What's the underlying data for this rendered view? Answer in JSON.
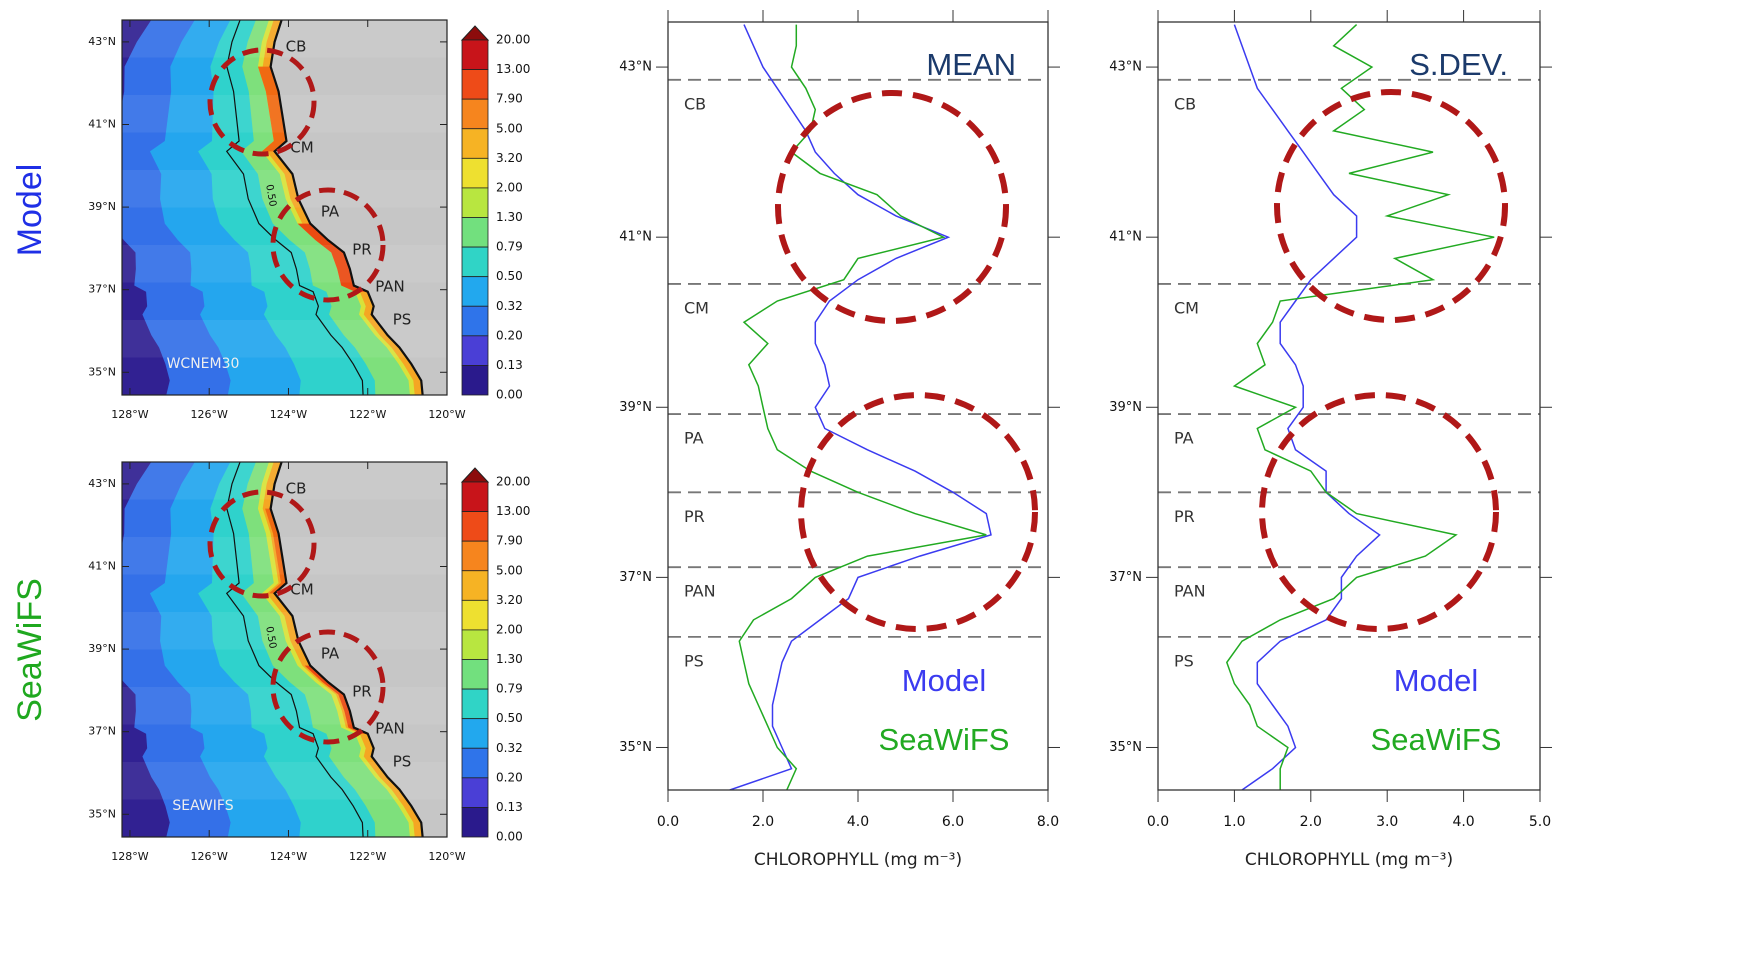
{
  "chart_data": [
    {
      "type": "map",
      "side_label": "Model",
      "side_label_color": "#1f2fe6",
      "panel_label": "WCNEM30",
      "region_labels": [
        "CB",
        "CM",
        "PA",
        "PR",
        "PAN",
        "PS"
      ],
      "contour_label": "0.50",
      "xlim": [
        -128.2,
        -120
      ],
      "xticks": [
        {
          "value": -128,
          "label": "128°W"
        },
        {
          "value": -126,
          "label": "126°W"
        },
        {
          "value": -124,
          "label": "124°W"
        },
        {
          "value": -122,
          "label": "122°W"
        },
        {
          "value": -120,
          "label": "120°W"
        }
      ],
      "ylim": [
        34.45,
        43.53
      ],
      "yticks": [
        {
          "value": 43,
          "label": "43°N"
        },
        {
          "value": 41,
          "label": "41°N"
        },
        {
          "value": 39,
          "label": "39°N"
        },
        {
          "value": 37,
          "label": "37°N"
        },
        {
          "value": 35,
          "label": "35°N"
        }
      ],
      "colorbar": {
        "levels": [
          {
            "value": 20,
            "label": "20.00"
          },
          {
            "value": 13,
            "label": "13.00"
          },
          {
            "value": 7.9,
            "label": "7.90"
          },
          {
            "value": 5,
            "label": "5.00"
          },
          {
            "value": 3.2,
            "label": "3.20"
          },
          {
            "value": 2,
            "label": "2.00"
          },
          {
            "value": 1.3,
            "label": "1.30"
          },
          {
            "value": 0.79,
            "label": "0.79"
          },
          {
            "value": 0.5,
            "label": "0.50"
          },
          {
            "value": 0.32,
            "label": "0.32"
          },
          {
            "value": 0.2,
            "label": "0.20"
          },
          {
            "value": 0.13,
            "label": "0.13"
          },
          {
            "value": 0,
            "label": "0.00"
          }
        ],
        "colors": [
          "#c8141a",
          "#ee4b18",
          "#f6851e",
          "#f6b324",
          "#eee030",
          "#b8e640",
          "#72e07e",
          "#30d4c6",
          "#22a8ee",
          "#2f74ea",
          "#4a3fd6",
          "#2a1a8c"
        ],
        "over_color": "#8c0c0c"
      }
    },
    {
      "type": "map",
      "side_label": "SeaWiFS",
      "side_label_color": "#1fa81f",
      "panel_label": "SEAWIFS",
      "region_labels": [
        "CB",
        "CM",
        "PA",
        "PR",
        "PAN",
        "PS"
      ],
      "contour_label": "0.50",
      "xlim": [
        -128.2,
        -120
      ],
      "xticks": [
        {
          "value": -128,
          "label": "128°W"
        },
        {
          "value": -126,
          "label": "126°W"
        },
        {
          "value": -124,
          "label": "124°W"
        },
        {
          "value": -122,
          "label": "122°W"
        },
        {
          "value": -120,
          "label": "120°W"
        }
      ],
      "ylim": [
        34.45,
        43.53
      ],
      "yticks": [
        {
          "value": 43,
          "label": "43°N"
        },
        {
          "value": 41,
          "label": "41°N"
        },
        {
          "value": 39,
          "label": "39°N"
        },
        {
          "value": 37,
          "label": "37°N"
        },
        {
          "value": 35,
          "label": "35°N"
        }
      ],
      "colorbar": {
        "levels": [
          {
            "value": 20,
            "label": "20.00"
          },
          {
            "value": 13,
            "label": "13.00"
          },
          {
            "value": 7.9,
            "label": "7.90"
          },
          {
            "value": 5,
            "label": "5.00"
          },
          {
            "value": 3.2,
            "label": "3.20"
          },
          {
            "value": 2,
            "label": "2.00"
          },
          {
            "value": 1.3,
            "label": "1.30"
          },
          {
            "value": 0.79,
            "label": "0.79"
          },
          {
            "value": 0.5,
            "label": "0.50"
          },
          {
            "value": 0.32,
            "label": "0.32"
          },
          {
            "value": 0.2,
            "label": "0.20"
          },
          {
            "value": 0.13,
            "label": "0.13"
          },
          {
            "value": 0,
            "label": "0.00"
          }
        ],
        "colors": [
          "#c8141a",
          "#ee4b18",
          "#f6851e",
          "#f6b324",
          "#eee030",
          "#b8e640",
          "#72e07e",
          "#30d4c6",
          "#22a8ee",
          "#2f74ea",
          "#4a3fd6",
          "#2a1a8c"
        ],
        "over_color": "#8c0c0c"
      }
    },
    {
      "type": "line",
      "title": "MEAN",
      "title_color": "#1b3a6b",
      "xlabel": "CHLOROPHYLL (mg m⁻³)",
      "xlim": [
        0,
        8
      ],
      "xticks": [
        {
          "value": 0,
          "label": "0.0"
        },
        {
          "value": 2,
          "label": "2.0"
        },
        {
          "value": 4,
          "label": "4.0"
        },
        {
          "value": 6,
          "label": "6.0"
        },
        {
          "value": 8,
          "label": "8.0"
        }
      ],
      "ylim": [
        34.5,
        43.53
      ],
      "yticks": [
        {
          "value": 43,
          "label": "43°N"
        },
        {
          "value": 41,
          "label": "41°N"
        },
        {
          "value": 39,
          "label": "39°N"
        },
        {
          "value": 37,
          "label": "37°N"
        },
        {
          "value": 35,
          "label": "35°N"
        }
      ],
      "y": [
        43.5,
        43.25,
        43,
        42.75,
        42.5,
        42.25,
        42,
        41.75,
        41.5,
        41.25,
        41,
        40.75,
        40.5,
        40.25,
        40,
        39.75,
        39.5,
        39.25,
        39,
        38.75,
        38.5,
        38.25,
        38,
        37.75,
        37.5,
        37.25,
        37,
        36.75,
        36.5,
        36.25,
        36,
        35.75,
        35.5,
        35.25,
        35,
        34.75,
        34.5
      ],
      "series": [
        {
          "name": "Model",
          "color": "#3b3bf0",
          "values": [
            1.6,
            1.8,
            2.0,
            2.3,
            2.6,
            2.9,
            3.1,
            3.5,
            4.0,
            4.8,
            5.9,
            4.8,
            4.0,
            3.4,
            3.1,
            3.1,
            3.3,
            3.4,
            3.1,
            3.3,
            4.2,
            5.2,
            6.0,
            6.7,
            6.8,
            5.3,
            4.0,
            3.8,
            3.2,
            2.6,
            2.4,
            2.3,
            2.2,
            2.2,
            2.4,
            2.6,
            1.3
          ]
        },
        {
          "name": "SeaWiFS",
          "color": "#22aa22",
          "values": [
            2.7,
            2.7,
            2.6,
            2.9,
            3.1,
            3.0,
            2.6,
            3.2,
            4.4,
            4.9,
            5.8,
            4.0,
            3.7,
            2.3,
            1.6,
            2.1,
            1.7,
            1.9,
            2.0,
            2.1,
            2.3,
            3.0,
            4.0,
            5.2,
            6.7,
            4.2,
            3.1,
            2.6,
            1.8,
            1.5,
            1.6,
            1.7,
            1.9,
            2.1,
            2.3,
            2.7,
            2.5
          ]
        }
      ],
      "regions": [
        {
          "name": "CB",
          "lat": 42.85
        },
        {
          "name": "CM",
          "lat": 40.45
        },
        {
          "name": "PA",
          "lat": 38.92
        },
        {
          "name": "PR",
          "lat": 38.0
        },
        {
          "name": "PAN",
          "lat": 37.12
        },
        {
          "name": "PS",
          "lat": 36.3
        }
      ]
    },
    {
      "type": "line",
      "title": "S.DEV.",
      "title_color": "#1b3a6b",
      "xlabel": "CHLOROPHYLL (mg m⁻³)",
      "xlim": [
        0,
        5
      ],
      "xticks": [
        {
          "value": 0,
          "label": "0.0"
        },
        {
          "value": 1,
          "label": "1.0"
        },
        {
          "value": 2,
          "label": "2.0"
        },
        {
          "value": 3,
          "label": "3.0"
        },
        {
          "value": 4,
          "label": "4.0"
        },
        {
          "value": 5,
          "label": "5.0"
        }
      ],
      "ylim": [
        34.5,
        43.53
      ],
      "yticks": [
        {
          "value": 43,
          "label": "43°N"
        },
        {
          "value": 41,
          "label": "41°N"
        },
        {
          "value": 39,
          "label": "39°N"
        },
        {
          "value": 37,
          "label": "37°N"
        },
        {
          "value": 35,
          "label": "35°N"
        }
      ],
      "y": [
        43.5,
        43.25,
        43,
        42.75,
        42.5,
        42.25,
        42,
        41.75,
        41.5,
        41.25,
        41,
        40.75,
        40.5,
        40.25,
        40,
        39.75,
        39.5,
        39.25,
        39,
        38.75,
        38.5,
        38.25,
        38,
        37.75,
        37.5,
        37.25,
        37,
        36.75,
        36.5,
        36.25,
        36,
        35.75,
        35.5,
        35.25,
        35,
        34.75,
        34.5
      ],
      "series": [
        {
          "name": "Model",
          "color": "#3b3bf0",
          "values": [
            1.0,
            1.1,
            1.2,
            1.3,
            1.5,
            1.7,
            1.9,
            2.1,
            2.3,
            2.6,
            2.6,
            2.3,
            2.0,
            1.8,
            1.6,
            1.6,
            1.8,
            1.9,
            1.9,
            1.7,
            1.8,
            2.2,
            2.2,
            2.5,
            2.9,
            2.6,
            2.4,
            2.4,
            2.2,
            1.6,
            1.3,
            1.3,
            1.5,
            1.7,
            1.8,
            1.5,
            1.1
          ]
        },
        {
          "name": "SeaWiFS",
          "color": "#22aa22",
          "values": [
            2.6,
            2.3,
            2.8,
            2.4,
            2.7,
            2.3,
            3.6,
            2.5,
            3.8,
            3.0,
            4.4,
            3.1,
            3.6,
            1.6,
            1.5,
            1.3,
            1.4,
            1.0,
            1.8,
            1.3,
            1.4,
            2.0,
            2.2,
            2.6,
            3.9,
            3.5,
            2.6,
            2.3,
            1.6,
            1.1,
            0.9,
            1.0,
            1.2,
            1.3,
            1.7,
            1.6,
            1.6
          ]
        }
      ],
      "regions": [
        {
          "name": "CB",
          "lat": 42.85
        },
        {
          "name": "CM",
          "lat": 40.45
        },
        {
          "name": "PA",
          "lat": 38.92
        },
        {
          "name": "PR",
          "lat": 38.0
        },
        {
          "name": "PAN",
          "lat": 37.12
        },
        {
          "name": "PS",
          "lat": 36.3
        }
      ]
    }
  ]
}
